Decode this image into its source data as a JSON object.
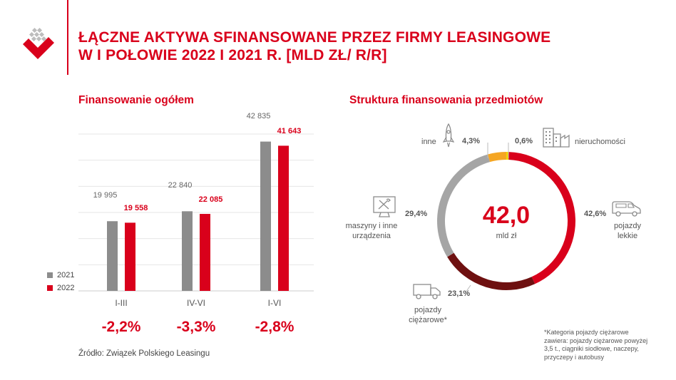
{
  "title_lines": [
    "ŁĄCZNE AKTYWA SFINANSOWANE PRZEZ FIRMY LEASINGOWE",
    "W I POŁOWIE 2022 I 2021 R. [MLD ZŁ/ R/R]"
  ],
  "colors": {
    "red": "#d9001b",
    "gray": "#8c8c8c",
    "orange": "#f5a623",
    "yellow": "#f2d600",
    "dark_red": "#6e1010",
    "light_gray": "#a5a5a5"
  },
  "icons": [
    "logo-icon",
    "rocket-icon",
    "buildings-icon",
    "car-icon",
    "truck-icon",
    "tools-monitor-icon"
  ],
  "left_section_title": "Finansowanie ogółem",
  "right_section_title": "Struktura finansowania przedmiotów",
  "source": "Źródło: Związek Polskiego Leasingu",
  "chart_data": [
    {
      "type": "bar",
      "title": "Finansowanie ogółem",
      "categories": [
        "I-III",
        "IV-VI",
        "I-VI"
      ],
      "series": [
        {
          "name": "2021",
          "values": [
            19995,
            22840,
            42835
          ],
          "labels": [
            "19 995",
            "22 840",
            "42 835"
          ],
          "color": "#8c8c8c"
        },
        {
          "name": "2022",
          "values": [
            19558,
            22085,
            41643
          ],
          "labels": [
            "19 558",
            "22 085",
            "41 643"
          ],
          "color": "#d9001b"
        }
      ],
      "changes": [
        "-2,2%",
        "-3,3%",
        "-2,8%"
      ],
      "ylim": [
        0,
        45000
      ],
      "grid": true,
      "legend": "bottom-left"
    },
    {
      "type": "pie",
      "title": "Struktura finansowania przedmiotów",
      "center_value": "42,0",
      "center_unit": "mld zł",
      "slices": [
        {
          "name": "nieruchomości",
          "value": 0.6,
          "label": "0,6%",
          "color": "#f2d600"
        },
        {
          "name": "pojazdy lekkie",
          "value": 42.6,
          "label": "42,6%",
          "color": "#d9001b"
        },
        {
          "name": "pojazdy ciężarowe*",
          "value": 23.1,
          "label": "23,1%",
          "color": "#6e1010"
        },
        {
          "name": "maszyny i inne urządzenia",
          "value": 29.4,
          "label": "29,4%",
          "color": "#a5a5a5"
        },
        {
          "name": "inne",
          "value": 4.3,
          "label": "4,3%",
          "color": "#f5a623"
        }
      ],
      "slice_label_lines": {
        "pojazdy_lekkie": [
          "pojazdy",
          "lekkie"
        ],
        "pojazdy_ciezarowe": [
          "pojazdy",
          "ciężarowe*"
        ],
        "maszyny": [
          "maszyny i inne",
          "urządzenia"
        ]
      }
    }
  ],
  "footnote_lines": [
    "*Kategoria pojazdy ciężarowe",
    "zawiera: pojazdy ciężarowe powyżej",
    "3,5 t., ciągniki siodłowe, naczepy,",
    "przyczepy i autobusy"
  ]
}
